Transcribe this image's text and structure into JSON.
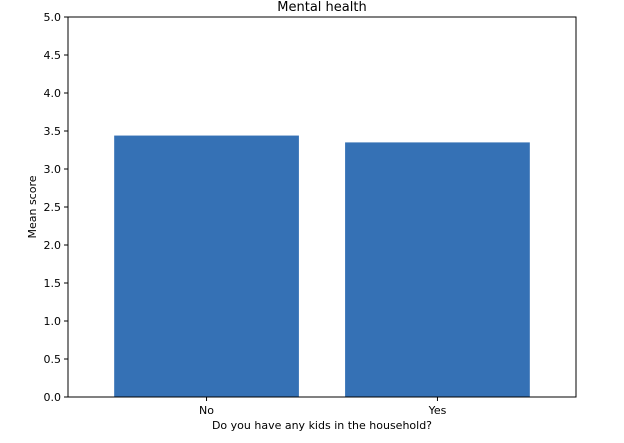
{
  "chart_data": {
    "type": "bar",
    "title": "Mental health",
    "xlabel": "Do you have any kids in the household?",
    "ylabel": "Mean score",
    "categories": [
      "No",
      "Yes"
    ],
    "values": [
      3.44,
      3.35
    ],
    "ylim": [
      0,
      5
    ],
    "yticks": [
      "0.0",
      "0.5",
      "1.0",
      "1.5",
      "2.0",
      "2.5",
      "3.0",
      "3.5",
      "4.0",
      "4.5",
      "5.0"
    ],
    "grid": false,
    "bar_color": "#3571b5"
  }
}
